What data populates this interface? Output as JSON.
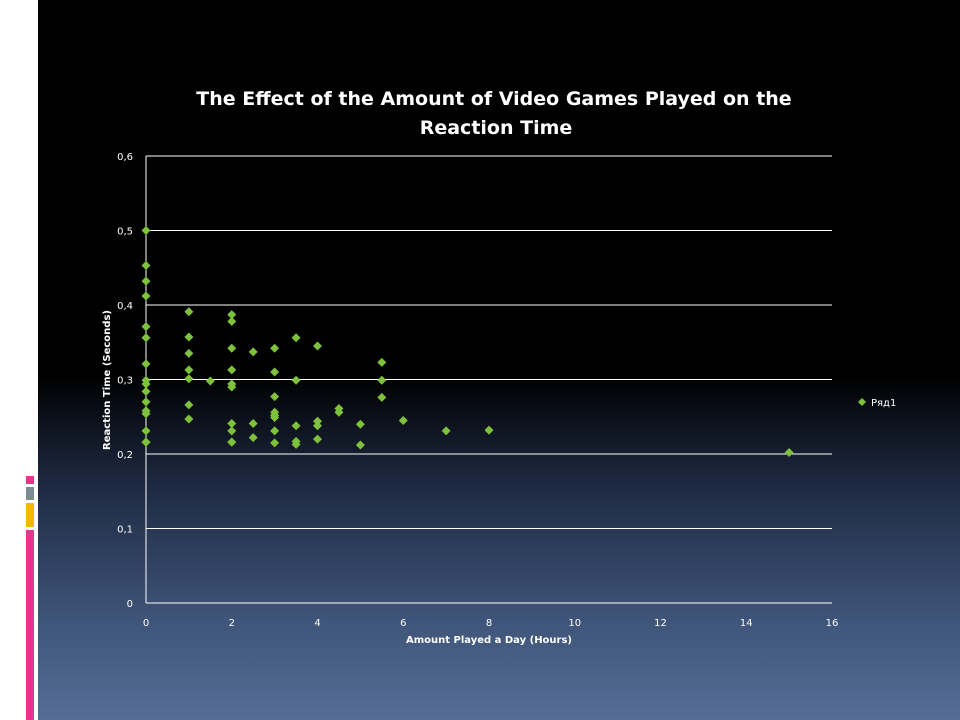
{
  "chart_data": {
    "type": "scatter",
    "title_lines": [
      "The Effect of the Amount of Video Games Played on the",
      "Reaction Time"
    ],
    "xlabel": "Amount Played a Day (Hours)",
    "ylabel": "Reaction Time (Seconds)",
    "xlim": [
      0,
      16
    ],
    "ylim": [
      0,
      0.6
    ],
    "x_ticks": [
      0,
      2,
      4,
      6,
      8,
      10,
      12,
      14,
      16
    ],
    "x_tick_labels": [
      "0",
      "2",
      "4",
      "6",
      "8",
      "10",
      "12",
      "14",
      "16"
    ],
    "y_ticks": [
      0,
      0.1,
      0.2,
      0.3,
      0.4,
      0.5,
      0.6
    ],
    "y_tick_labels": [
      "0",
      "0,1",
      "0,2",
      "0,3",
      "0,4",
      "0,5",
      "0,6"
    ],
    "grid": "horizontal",
    "legend_position": "right",
    "marker_color": "#7ec13c",
    "series": [
      {
        "name": "Ряд1",
        "x": [
          0,
          0,
          0,
          0,
          0,
          0,
          0,
          0,
          0,
          0,
          0,
          0,
          0,
          0,
          0,
          0,
          0,
          1,
          1,
          1,
          1,
          1,
          1,
          1,
          1.5,
          2,
          2,
          2,
          2,
          2,
          2,
          2,
          2,
          2,
          2,
          2.5,
          2.5,
          2.5,
          3,
          3,
          3,
          3,
          3,
          3,
          3,
          3,
          3.5,
          3.5,
          3.5,
          3.5,
          3.5,
          4,
          4,
          4,
          4,
          4.5,
          4.5,
          5,
          5,
          5.5,
          5.5,
          5.5,
          6,
          7,
          8,
          15
        ],
        "y": [
          0.5,
          0.453,
          0.432,
          0.412,
          0.371,
          0.356,
          0.321,
          0.299,
          0.294,
          0.284,
          0.27,
          0.258,
          0.254,
          0.231,
          0.216,
          0.216,
          0.216,
          0.391,
          0.357,
          0.335,
          0.313,
          0.301,
          0.266,
          0.247,
          0.298,
          0.387,
          0.378,
          0.342,
          0.313,
          0.294,
          0.29,
          0.241,
          0.231,
          0.216,
          0.216,
          0.337,
          0.241,
          0.222,
          0.342,
          0.31,
          0.277,
          0.256,
          0.252,
          0.249,
          0.231,
          0.215,
          0.356,
          0.299,
          0.238,
          0.217,
          0.213,
          0.345,
          0.244,
          0.238,
          0.22,
          0.261,
          0.256,
          0.24,
          0.212,
          0.323,
          0.299,
          0.276,
          0.245,
          0.231,
          0.232,
          0.202
        ]
      }
    ]
  }
}
